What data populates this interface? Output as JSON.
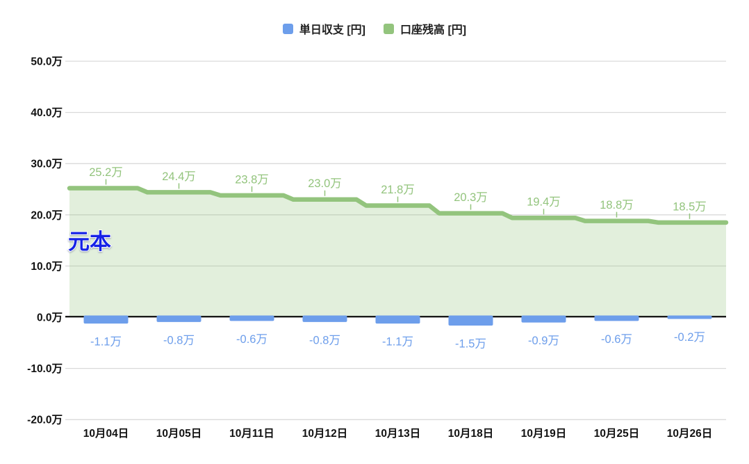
{
  "legend": [
    {
      "label": "単日収支 [円]",
      "color": "#6d9eeb",
      "icon": "blue-square-swatch"
    },
    {
      "label": "口座残高 [円]",
      "color": "#93c47d",
      "icon": "green-square-swatch"
    }
  ],
  "chart_data": {
    "type": "combo",
    "subtypes": [
      "bar",
      "stepped-area"
    ],
    "title": "",
    "xlabel": "",
    "ylabel": "",
    "unit": "万 (10,000 JPY)",
    "grid": true,
    "legend_position": "top",
    "categories": [
      "10月04日",
      "10月05日",
      "10月11日",
      "10月12日",
      "10月13日",
      "10月18日",
      "10月19日",
      "10月25日",
      "10月26日"
    ],
    "series": [
      {
        "name": "単日収支 [円]",
        "type": "bar",
        "color": "#6d9eeb",
        "values": [
          -1.1,
          -0.8,
          -0.6,
          -0.8,
          -1.1,
          -1.5,
          -0.9,
          -0.6,
          -0.2
        ],
        "labels": [
          "-1.1万",
          "-0.8万",
          "-0.6万",
          "-0.8万",
          "-1.1万",
          "-1.5万",
          "-0.9万",
          "-0.6万",
          "-0.2万"
        ]
      },
      {
        "name": "口座残高 [円]",
        "type": "stepped-area",
        "color": "#93c47d",
        "fill_opacity": 0.27,
        "values": [
          25.2,
          24.4,
          23.8,
          23.0,
          21.8,
          20.3,
          19.4,
          18.8,
          18.5
        ],
        "labels": [
          "25.2万",
          "24.4万",
          "23.8万",
          "23.0万",
          "21.8万",
          "20.3万",
          "19.4万",
          "18.8万",
          "18.5万"
        ]
      }
    ],
    "y_axis": {
      "min": -20,
      "max": 50,
      "ticks": [
        50,
        40,
        30,
        20,
        10,
        0,
        -10,
        -20
      ],
      "tick_labels": [
        "50.0万",
        "40.0万",
        "30.0万",
        "20.0万",
        "10.0万",
        "0.0万",
        "-10.0万",
        "-20.0万"
      ]
    },
    "reference_line": {
      "value": 20,
      "label": "元本",
      "color": "#1423e6",
      "style": "dashed"
    },
    "colors": {
      "grid": "#d9d9d9",
      "zero_axis": "#1a1a1a",
      "axis_text": "#111111",
      "bar_label_text": "#6d9eeb",
      "area_label_text": "#93c47d"
    }
  }
}
